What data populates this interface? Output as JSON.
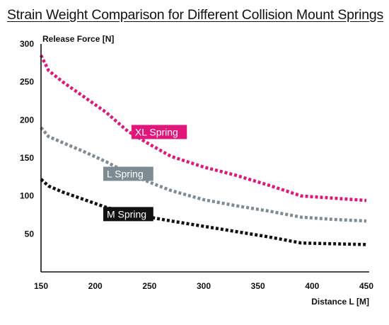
{
  "chart_data": {
    "type": "line",
    "title": "Strain Weight Comparison for Different Collision Mount Springs",
    "xlabel": "Distance L [M]",
    "ylabel": "Release Force [N]",
    "xlim": [
      150,
      450
    ],
    "ylim": [
      0,
      300
    ],
    "x_ticks": [
      "150",
      "200",
      "250",
      "300",
      "350",
      "400",
      "450"
    ],
    "y_ticks": [
      "300",
      "250",
      "200",
      "150",
      "100",
      "50"
    ],
    "grid": false,
    "series": [
      {
        "name": "XL Spring",
        "color": "#e0177a",
        "x": [
          150,
          157,
          170,
          190,
          210,
          230,
          250,
          270,
          300,
          330,
          360,
          390,
          420,
          450
        ],
        "y": [
          285,
          265,
          250,
          230,
          210,
          185,
          168,
          152,
          138,
          127,
          114,
          100,
          97,
          94
        ]
      },
      {
        "name": "L Spring",
        "color": "#7f8b93",
        "x": [
          150,
          157,
          170,
          190,
          210,
          230,
          250,
          270,
          300,
          330,
          360,
          390,
          420,
          450
        ],
        "y": [
          190,
          178,
          170,
          158,
          145,
          130,
          118,
          107,
          95,
          87,
          80,
          72,
          69,
          67
        ]
      },
      {
        "name": "M Spring",
        "color": "#111111",
        "x": [
          150,
          157,
          170,
          190,
          210,
          230,
          250,
          270,
          300,
          330,
          360,
          390,
          420,
          450
        ],
        "y": [
          122,
          113,
          105,
          95,
          85,
          77,
          72,
          67,
          60,
          53,
          46,
          38,
          37,
          36
        ]
      }
    ]
  }
}
